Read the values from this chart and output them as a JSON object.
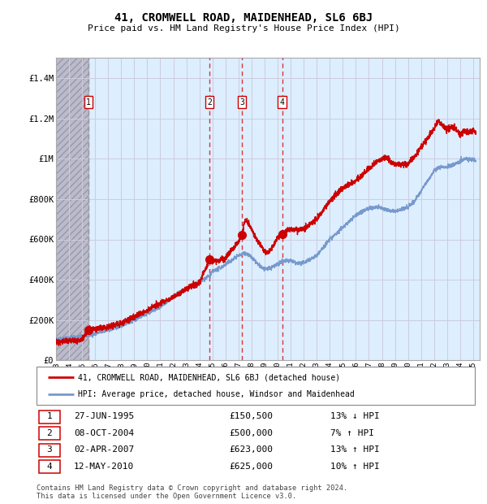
{
  "title": "41, CROMWELL ROAD, MAIDENHEAD, SL6 6BJ",
  "subtitle": "Price paid vs. HM Land Registry's House Price Index (HPI)",
  "footer1": "Contains HM Land Registry data © Crown copyright and database right 2024.",
  "footer2": "This data is licensed under the Open Government Licence v3.0.",
  "legend_red": "41, CROMWELL ROAD, MAIDENHEAD, SL6 6BJ (detached house)",
  "legend_blue": "HPI: Average price, detached house, Windsor and Maidenhead",
  "transactions": [
    {
      "num": 1,
      "date": "27-JUN-1995",
      "price": 150500,
      "price_str": "£150,500",
      "pct": "13%",
      "dir": "↓",
      "year_x": 1995.49
    },
    {
      "num": 2,
      "date": "08-OCT-2004",
      "price": 500000,
      "price_str": "£500,000",
      "pct": "7%",
      "dir": "↑",
      "year_x": 2004.77
    },
    {
      "num": 3,
      "date": "02-APR-2007",
      "price": 623000,
      "price_str": "£623,000",
      "pct": "13%",
      "dir": "↑",
      "year_x": 2007.25
    },
    {
      "num": 4,
      "date": "12-MAY-2010",
      "price": 625000,
      "price_str": "£625,000",
      "pct": "10%",
      "dir": "↑",
      "year_x": 2010.36
    }
  ],
  "ylim": [
    0,
    1500000
  ],
  "yticks": [
    0,
    200000,
    400000,
    600000,
    800000,
    1000000,
    1200000,
    1400000
  ],
  "ytick_labels": [
    "£0",
    "£200K",
    "£400K",
    "£600K",
    "£800K",
    "£1M",
    "£1.2M",
    "£1.4M"
  ],
  "xlim_start": 1993.0,
  "xlim_end": 2025.5,
  "red_color": "#cc0000",
  "blue_color": "#7799cc",
  "bg_chart": "#ddeeff",
  "bg_hatch_color": "#bbbbcc",
  "grid_color": "#ccccdd",
  "dashed_red_color": "#dd3333",
  "dashed_grey_color": "#999999",
  "hatch_end": 1995.49
}
